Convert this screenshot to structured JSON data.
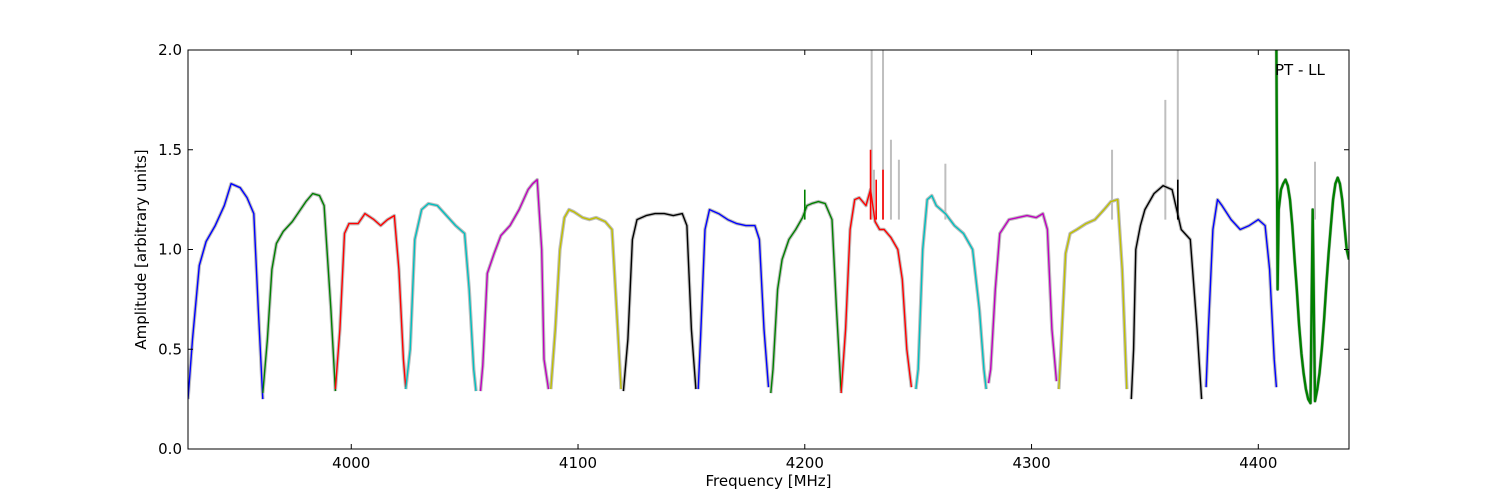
{
  "chart_data": {
    "type": "line",
    "title": "",
    "annotation": "PT - LL",
    "xlabel": "Frequency [MHz]",
    "ylabel": "Amplitude [arbitrary units]",
    "xlim": [
      3928,
      4440
    ],
    "ylim": [
      0,
      2.0
    ],
    "xticks": [
      4000,
      4100,
      4200,
      4300,
      4400
    ],
    "xtick_labels": [
      "4000",
      "4100",
      "4200",
      "4300",
      "4400"
    ],
    "yticks": [
      0,
      0.5,
      1.0,
      1.5,
      2.0
    ],
    "ytick_labels": [
      "0.0",
      "0.5",
      "1.0",
      "1.5",
      "2.0"
    ],
    "grid": false,
    "background_color": "#bfbfbf",
    "series": [
      {
        "color": "#0000ff",
        "x": [
          3928,
          3930,
          3933,
          3936,
          3940,
          3944,
          3947,
          3951,
          3954,
          3957,
          3959,
          3961
        ],
        "y": [
          0.25,
          0.55,
          0.92,
          1.04,
          1.12,
          1.22,
          1.33,
          1.31,
          1.26,
          1.18,
          0.7,
          0.25
        ]
      },
      {
        "color": "#008000",
        "x": [
          3961,
          3963,
          3965,
          3967,
          3970,
          3974,
          3977,
          3980,
          3983,
          3986,
          3988,
          3991,
          3993
        ],
        "y": [
          0.28,
          0.55,
          0.9,
          1.03,
          1.09,
          1.14,
          1.19,
          1.24,
          1.28,
          1.27,
          1.22,
          0.7,
          0.29
        ]
      },
      {
        "color": "#ff0000",
        "x": [
          3993,
          3995,
          3997,
          3999,
          4003,
          4006,
          4010,
          4013,
          4016,
          4019,
          4021,
          4023,
          4024
        ],
        "y": [
          0.3,
          0.6,
          1.08,
          1.13,
          1.13,
          1.18,
          1.15,
          1.12,
          1.15,
          1.17,
          0.9,
          0.45,
          0.31
        ]
      },
      {
        "color": "#00bfbf",
        "x": [
          4024,
          4026,
          4028,
          4031,
          4034,
          4038,
          4042,
          4046,
          4050,
          4052,
          4054,
          4055
        ],
        "y": [
          0.3,
          0.5,
          1.05,
          1.2,
          1.23,
          1.22,
          1.17,
          1.12,
          1.08,
          0.8,
          0.4,
          0.29
        ]
      },
      {
        "color": "#bf00bf",
        "x": [
          4057,
          4058,
          4060,
          4063,
          4066,
          4070,
          4074,
          4078,
          4080,
          4082,
          4084,
          4085,
          4087
        ],
        "y": [
          0.29,
          0.42,
          0.88,
          0.98,
          1.07,
          1.12,
          1.2,
          1.3,
          1.33,
          1.35,
          1.0,
          0.45,
          0.3
        ]
      },
      {
        "color": "#bfbf00",
        "x": [
          4088,
          4090,
          4092,
          4094,
          4096,
          4098,
          4102,
          4105,
          4108,
          4112,
          4115,
          4117,
          4119
        ],
        "y": [
          0.3,
          0.6,
          1.0,
          1.16,
          1.2,
          1.19,
          1.16,
          1.15,
          1.16,
          1.14,
          1.1,
          0.7,
          0.3
        ]
      },
      {
        "color": "#000000",
        "x": [
          4120,
          4122,
          4124,
          4126,
          4130,
          4134,
          4138,
          4142,
          4146,
          4148,
          4150,
          4152
        ],
        "y": [
          0.29,
          0.55,
          1.05,
          1.15,
          1.17,
          1.18,
          1.18,
          1.17,
          1.18,
          1.12,
          0.6,
          0.3
        ]
      },
      {
        "color": "#0000ff",
        "x": [
          4153,
          4154,
          4156,
          4158,
          4162,
          4166,
          4170,
          4174,
          4178,
          4180,
          4182,
          4184
        ],
        "y": [
          0.3,
          0.55,
          1.1,
          1.2,
          1.18,
          1.15,
          1.13,
          1.12,
          1.12,
          1.05,
          0.6,
          0.31
        ]
      },
      {
        "color": "#008000",
        "x": [
          4185,
          4186,
          4188,
          4190,
          4193,
          4196,
          4199,
          4201,
          4203,
          4206,
          4209,
          4212,
          4214,
          4216
        ],
        "y": [
          0.28,
          0.4,
          0.8,
          0.95,
          1.05,
          1.1,
          1.16,
          1.22,
          1.23,
          1.24,
          1.23,
          1.15,
          0.7,
          0.29
        ]
      },
      {
        "color": "#ff0000",
        "x": [
          4216,
          4218,
          4220,
          4222,
          4224,
          4227,
          4229,
          4231,
          4233,
          4235,
          4238,
          4241,
          4243,
          4245,
          4247
        ],
        "y": [
          0.28,
          0.6,
          1.1,
          1.25,
          1.26,
          1.22,
          1.3,
          1.14,
          1.1,
          1.1,
          1.06,
          1.0,
          0.85,
          0.5,
          0.31
        ]
      },
      {
        "color": "#00bfbf",
        "x": [
          4249,
          4250,
          4252,
          4254,
          4256,
          4258,
          4262,
          4266,
          4270,
          4274,
          4277,
          4279,
          4280
        ],
        "y": [
          0.3,
          0.4,
          1.0,
          1.25,
          1.27,
          1.22,
          1.18,
          1.12,
          1.08,
          1.0,
          0.7,
          0.4,
          0.3
        ]
      },
      {
        "color": "#bf00bf",
        "x": [
          4281,
          4282,
          4284,
          4286,
          4290,
          4294,
          4298,
          4302,
          4305,
          4307,
          4309,
          4311
        ],
        "y": [
          0.33,
          0.4,
          0.8,
          1.08,
          1.15,
          1.16,
          1.17,
          1.16,
          1.18,
          1.1,
          0.6,
          0.34
        ]
      },
      {
        "color": "#bfbf00",
        "x": [
          4312,
          4313,
          4315,
          4317,
          4320,
          4324,
          4328,
          4332,
          4335,
          4338,
          4340,
          4342
        ],
        "y": [
          0.3,
          0.5,
          0.98,
          1.08,
          1.1,
          1.13,
          1.15,
          1.2,
          1.24,
          1.25,
          0.9,
          0.3
        ]
      },
      {
        "color": "#000000",
        "x": [
          4344,
          4345,
          4346,
          4348,
          4350,
          4354,
          4358,
          4362,
          4364,
          4366,
          4370,
          4373,
          4375
        ],
        "y": [
          0.25,
          0.5,
          1.0,
          1.12,
          1.2,
          1.28,
          1.32,
          1.3,
          1.2,
          1.1,
          1.05,
          0.6,
          0.25
        ]
      },
      {
        "color": "#0000ff",
        "x": [
          4377,
          4378,
          4380,
          4382,
          4384,
          4388,
          4392,
          4396,
          4400,
          4403,
          4405,
          4407,
          4408
        ],
        "y": [
          0.31,
          0.6,
          1.1,
          1.25,
          1.22,
          1.15,
          1.1,
          1.12,
          1.15,
          1.12,
          0.9,
          0.45,
          0.31
        ]
      },
      {
        "color": "#008000",
        "x": [
          4408,
          4408.5,
          4409,
          4410,
          4411,
          4412,
          4413,
          4414,
          4415,
          4416,
          4417,
          4418,
          4419,
          4420,
          4421,
          4422,
          4423,
          4424,
          4425,
          4426,
          4427,
          4428,
          4429,
          4430,
          4431,
          4432,
          4433,
          4434,
          4435,
          4436,
          4437,
          4438,
          4439,
          4440
        ],
        "y": [
          2.0,
          0.8,
          1.2,
          1.3,
          1.33,
          1.35,
          1.32,
          1.25,
          1.12,
          0.95,
          0.8,
          0.62,
          0.48,
          0.38,
          0.3,
          0.25,
          0.23,
          1.2,
          0.24,
          0.3,
          0.38,
          0.5,
          0.65,
          0.82,
          0.98,
          1.12,
          1.25,
          1.33,
          1.36,
          1.33,
          1.25,
          1.12,
          1.0,
          0.95
        ]
      }
    ],
    "background_peaks": [
      {
        "x": 4229.5,
        "y": 2.0
      },
      {
        "x": 4230.5,
        "y": 1.4
      },
      {
        "x": 4234.5,
        "y": 2.0
      },
      {
        "x": 4238,
        "y": 1.55
      },
      {
        "x": 4241.5,
        "y": 1.45
      },
      {
        "x": 4262,
        "y": 1.43
      },
      {
        "x": 4335.5,
        "y": 1.5
      },
      {
        "x": 4359,
        "y": 1.75
      },
      {
        "x": 4364.5,
        "y": 2.0
      },
      {
        "x": 4425,
        "y": 1.44
      }
    ],
    "foreground_spikes": [
      {
        "x": 4229,
        "y": 1.5,
        "color": "#ff0000"
      },
      {
        "x": 4231.5,
        "y": 1.35,
        "color": "#ff0000"
      },
      {
        "x": 4234.5,
        "y": 1.4,
        "color": "#ff0000"
      },
      {
        "x": 4200,
        "y": 1.3,
        "color": "#008000"
      },
      {
        "x": 4364.5,
        "y": 1.35,
        "color": "#000000"
      }
    ]
  }
}
